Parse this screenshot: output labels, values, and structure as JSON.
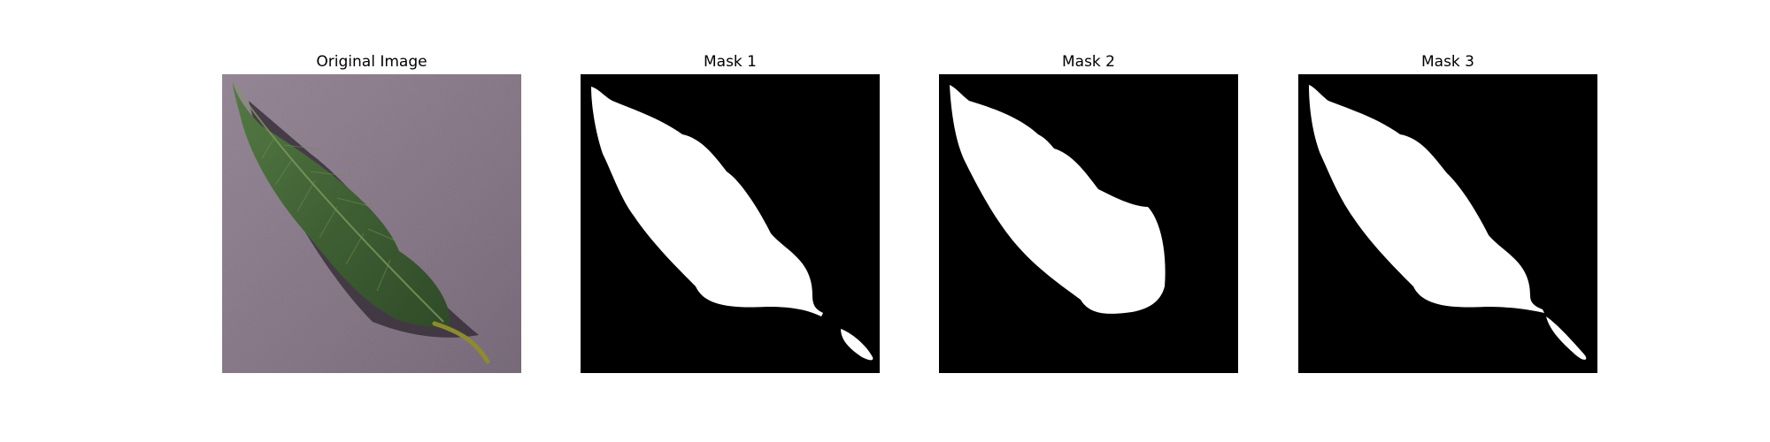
{
  "figure": {
    "panels": [
      {
        "title": "Original Image"
      },
      {
        "title": "Mask 1"
      },
      {
        "title": "Mask 2"
      },
      {
        "title": "Mask 3"
      }
    ]
  },
  "colors": {
    "mask_background": "#000000",
    "mask_foreground": "#ffffff",
    "surface": "#8e7f8f",
    "leaf": "#3f5f35",
    "shadow": "#2b232c",
    "stem": "#8a8a2d"
  }
}
